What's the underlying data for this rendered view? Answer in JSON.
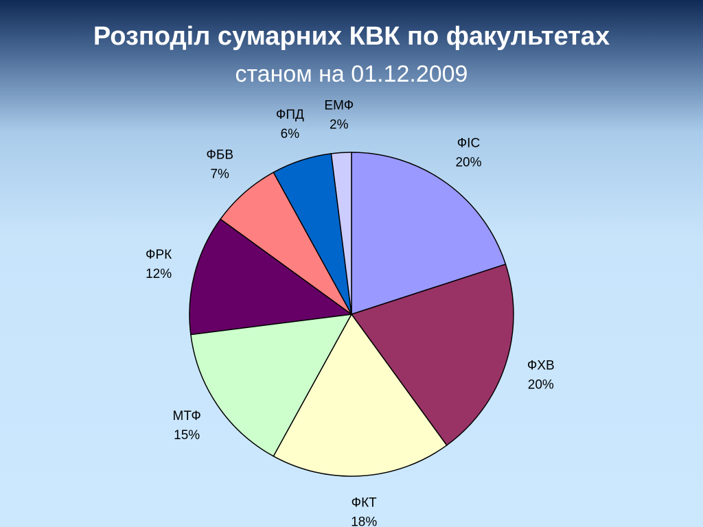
{
  "chart_data": {
    "type": "pie",
    "title": "Розподіл сумарних КВК по факультетах",
    "subtitle": "станом на 01.12.2009",
    "categories": [
      "ФІС",
      "ФХВ",
      "ФКТ",
      "МТФ",
      "ФРК",
      "ФБВ",
      "ФПД",
      "ЕМФ"
    ],
    "values": [
      20,
      20,
      18,
      15,
      12,
      7,
      6,
      2
    ],
    "value_labels": [
      "20%",
      "20%",
      "18%",
      "15%",
      "12%",
      "7%",
      "6%",
      "2%"
    ],
    "colors": [
      "#9999ff",
      "#993366",
      "#ffffcc",
      "#ccffcc",
      "#660066",
      "#ff8080",
      "#0066cc",
      "#ccccff"
    ]
  }
}
